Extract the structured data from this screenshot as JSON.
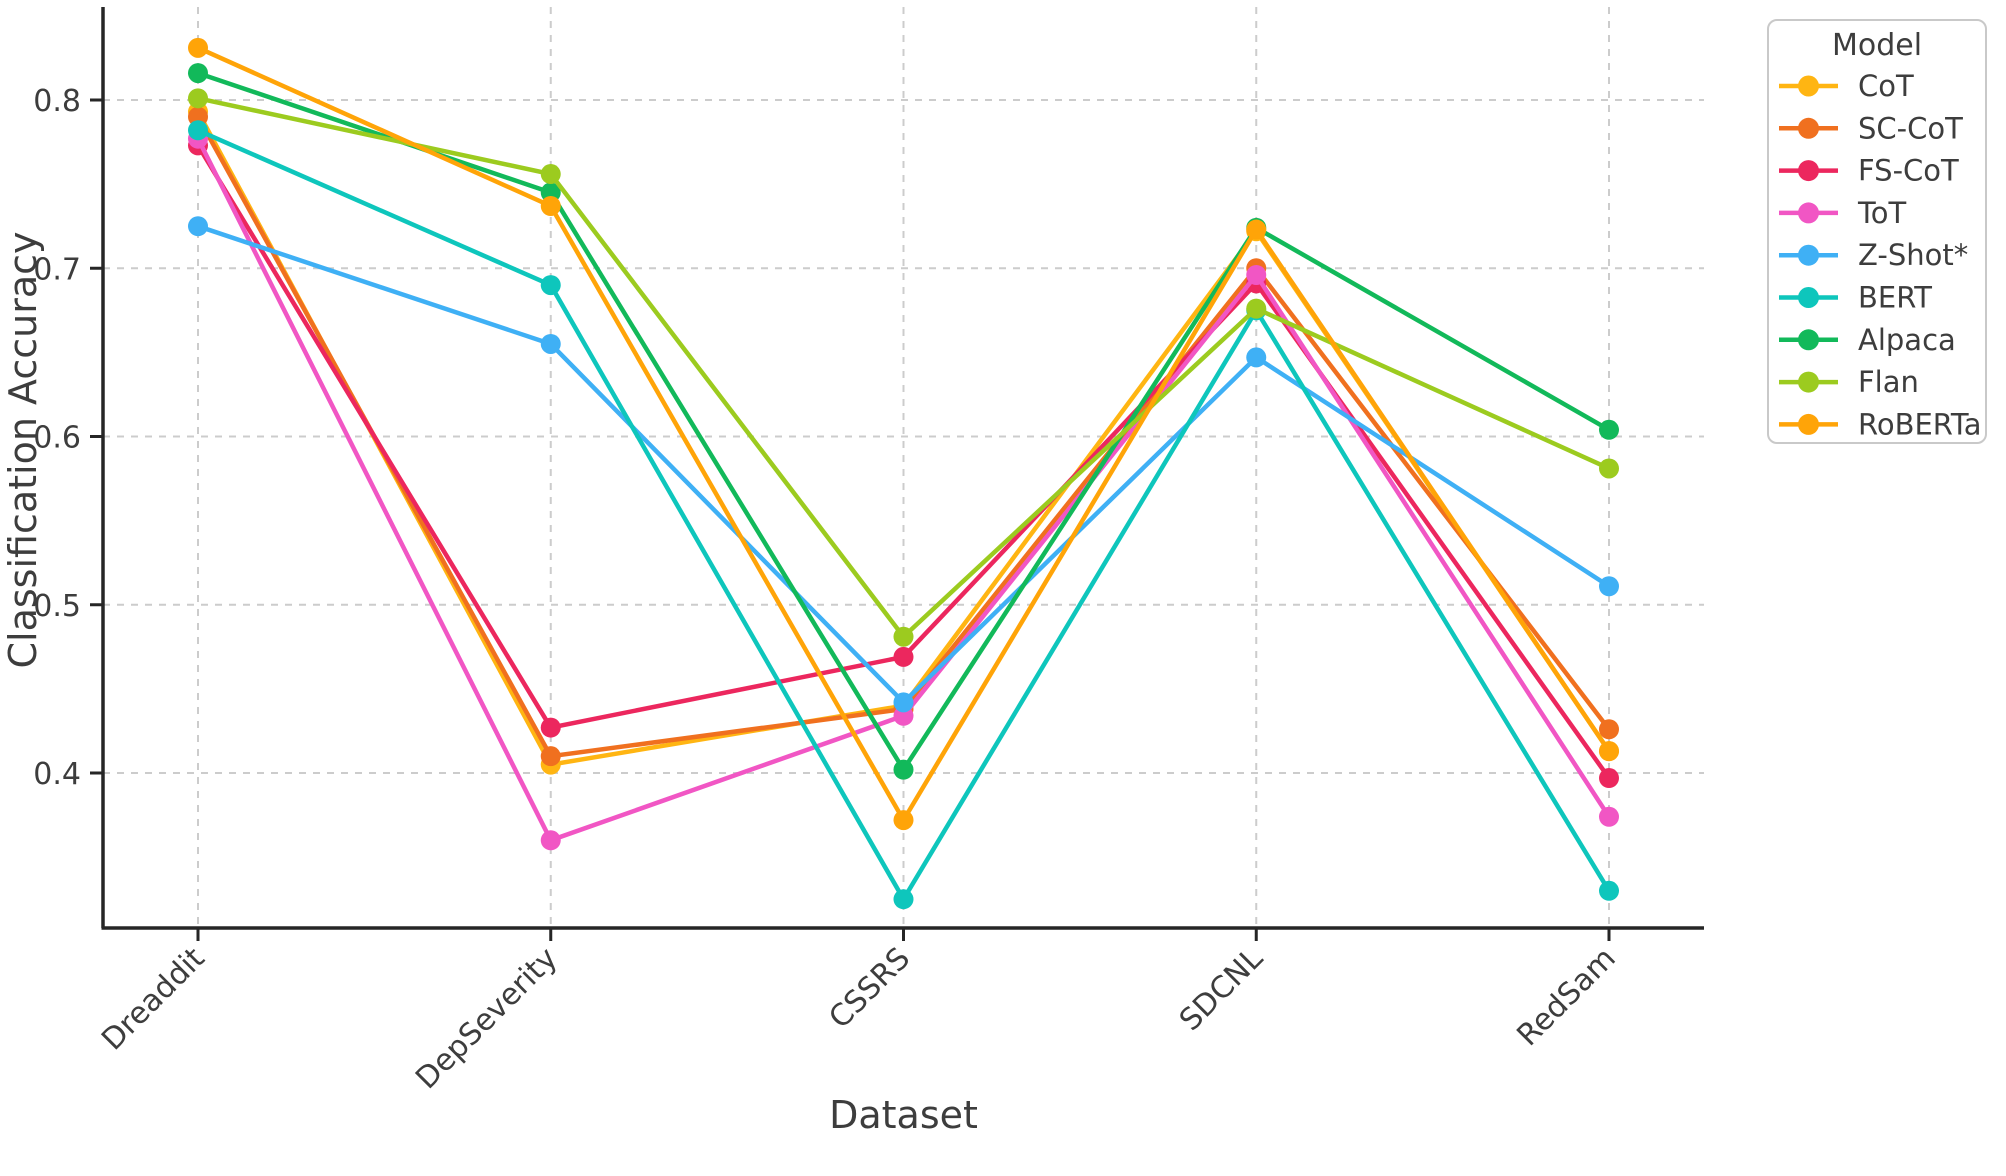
{
  "chart_data": {
    "type": "line",
    "title": "",
    "xlabel": "Dataset",
    "ylabel": "Classification Accuracy",
    "categories": [
      "Dreaddit",
      "DepSeverity",
      "CSSRS",
      "SDCNL",
      "RedSam"
    ],
    "yticks": [
      "0.4",
      "0.5",
      "0.6",
      "0.7",
      "0.8"
    ],
    "ytick_values": [
      0.4,
      0.5,
      0.6,
      0.7,
      0.8
    ],
    "ylim": [
      0.308,
      0.855
    ],
    "grid": "dashed horizontal and vertical",
    "legend_position": "upper right, outside plot",
    "legend": {
      "title": "Model"
    },
    "series": [
      {
        "name": "CoT",
        "color": "#FFB512",
        "values": [
          0.793,
          0.405,
          0.44,
          0.722,
          0.413
        ]
      },
      {
        "name": "SC-CoT",
        "color": "#F0701F",
        "values": [
          0.79,
          0.41,
          0.438,
          0.7,
          0.426
        ]
      },
      {
        "name": "FS-CoT",
        "color": "#EC275E",
        "values": [
          0.773,
          0.427,
          0.469,
          0.691,
          0.397
        ]
      },
      {
        "name": "ToT",
        "color": "#F156C4",
        "values": [
          0.777,
          0.36,
          0.434,
          0.696,
          0.374
        ]
      },
      {
        "name": "Z-Shot*",
        "color": "#3FB0F5",
        "values": [
          0.725,
          0.655,
          0.442,
          0.647,
          0.511
        ]
      },
      {
        "name": "BERT",
        "color": "#0EC6BC",
        "values": [
          0.782,
          0.69,
          0.325,
          0.675,
          0.33
        ]
      },
      {
        "name": "Alpaca",
        "color": "#12B95A",
        "values": [
          0.816,
          0.745,
          0.402,
          0.724,
          0.604
        ]
      },
      {
        "name": "Flan",
        "color": "#9CCB1F",
        "values": [
          0.801,
          0.756,
          0.481,
          0.676,
          0.581
        ]
      },
      {
        "name": "RoBERTa",
        "color": "#FFA408",
        "values": [
          0.831,
          0.737,
          0.372,
          0.723,
          0.413
        ]
      }
    ],
    "colors": {
      "spine": "#262626",
      "grid": "#cccccc",
      "tick_text": "#3d3d3d",
      "legend_border": "#c9c9c9",
      "background": "#ffffff"
    }
  }
}
